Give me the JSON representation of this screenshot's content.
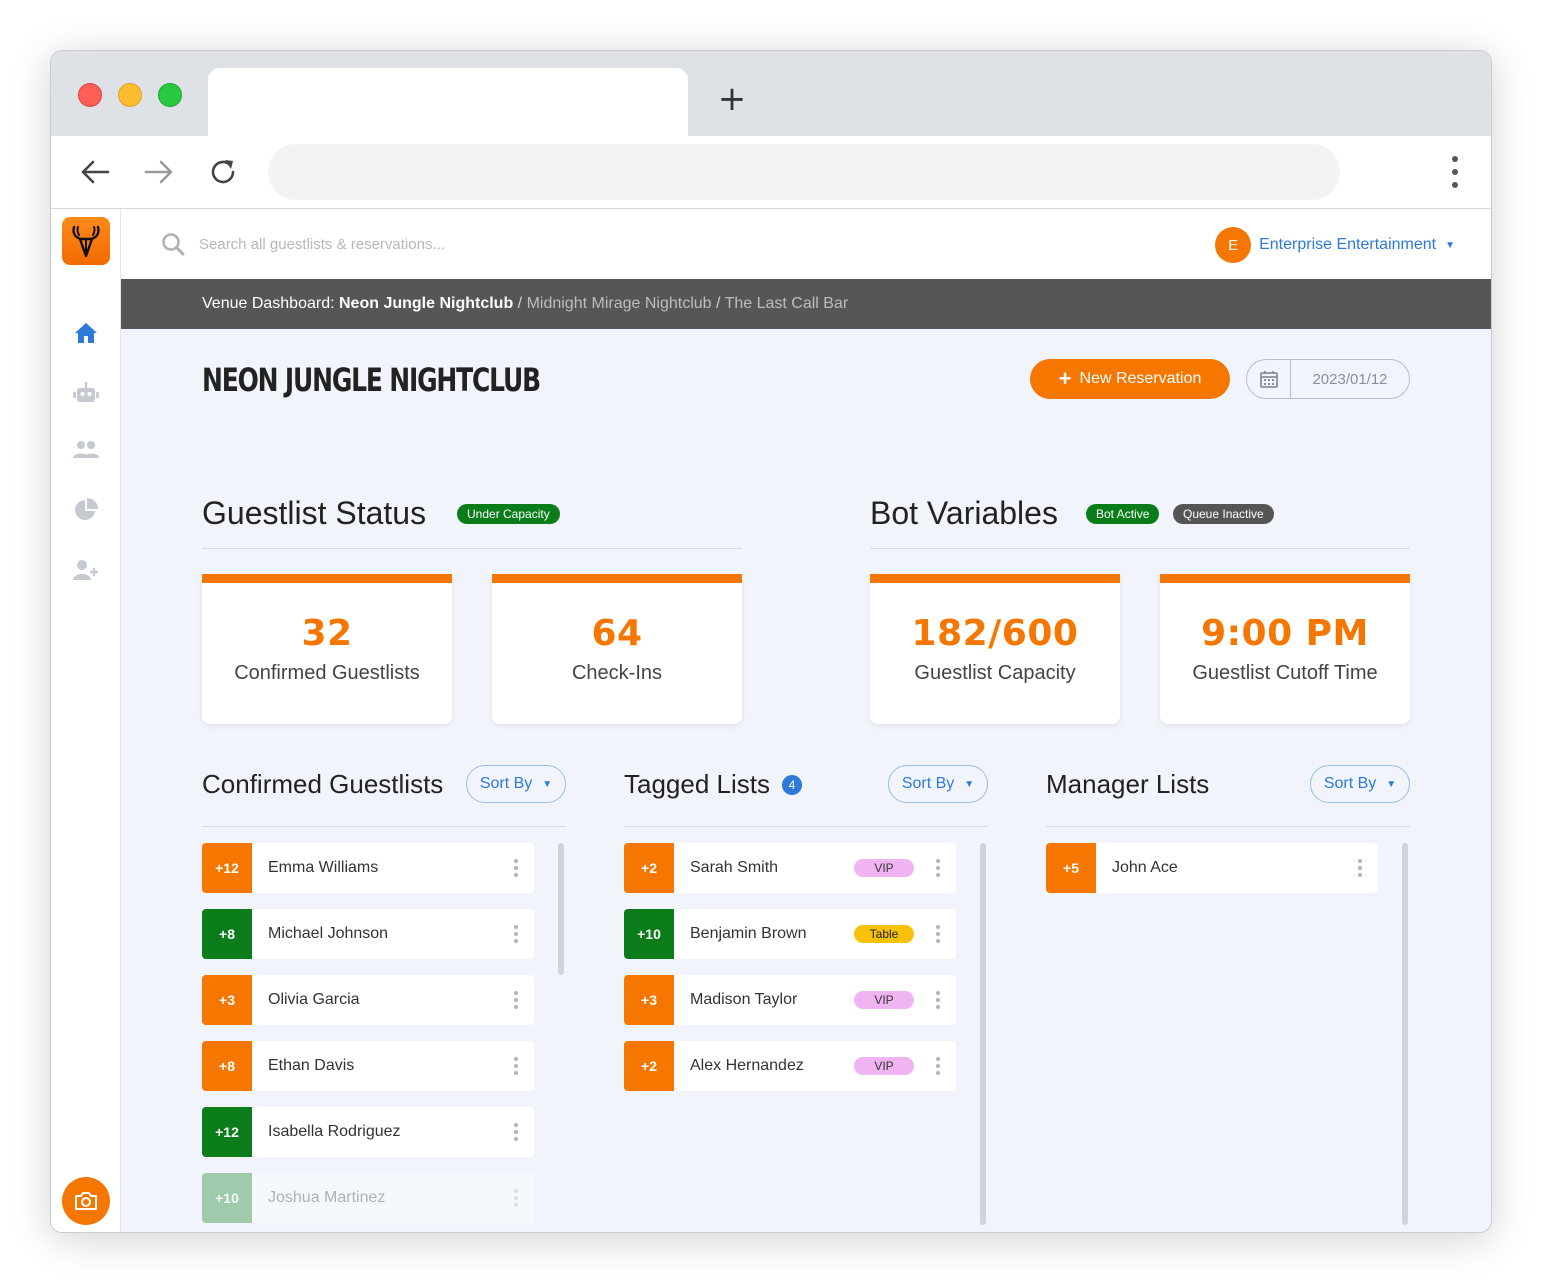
{
  "browser": {
    "new_tab_symbol": "+"
  },
  "header": {
    "search_placeholder": "Search all guestlists & reservations...",
    "account_initial": "E",
    "account_name": "Enterprise Entertainment",
    "account_caret": "▼"
  },
  "breadcrumb": {
    "prefix": "Venue Dashboard: ",
    "current": "Neon Jungle Nightclub",
    "sep": " / ",
    "others": [
      "Midnight Mirage Nightclub",
      "The Last Call Bar"
    ]
  },
  "page": {
    "title": "NEON JUNGLE NIGHTCLUB",
    "new_reservation_label": "New Reservation",
    "date": "2023/01/12"
  },
  "guestlist_status": {
    "title": "Guestlist Status",
    "badge": "Under Capacity",
    "stats": [
      {
        "value": "32",
        "label": "Confirmed Guestlists"
      },
      {
        "value": "64",
        "label": "Check-Ins"
      }
    ]
  },
  "bot_variables": {
    "title": "Bot Variables",
    "badges": [
      "Bot Active",
      "Queue Inactive"
    ],
    "stats": [
      {
        "value": "182/600",
        "label": "Guestlist Capacity"
      },
      {
        "value": "9:00 PM",
        "label": "Guestlist Cutoff Time"
      }
    ]
  },
  "lists": {
    "sort_label": "Sort By",
    "sort_caret": "▼",
    "confirmed": {
      "title": "Confirmed Guestlists",
      "rows": [
        {
          "plus": "+12",
          "name": "Emma Williams",
          "color": "orange"
        },
        {
          "plus": "+8",
          "name": "Michael Johnson",
          "color": "green"
        },
        {
          "plus": "+3",
          "name": "Olivia Garcia",
          "color": "orange"
        },
        {
          "plus": "+8",
          "name": "Ethan Davis",
          "color": "orange"
        },
        {
          "plus": "+12",
          "name": "Isabella Rodriguez",
          "color": "green"
        },
        {
          "plus": "+10",
          "name": "Joshua Martinez",
          "color": "green"
        }
      ]
    },
    "tagged": {
      "title": "Tagged Lists",
      "count": "4",
      "rows": [
        {
          "plus": "+2",
          "name": "Sarah Smith",
          "color": "orange",
          "tag": "VIP"
        },
        {
          "plus": "+10",
          "name": "Benjamin Brown",
          "color": "green",
          "tag": "Table"
        },
        {
          "plus": "+3",
          "name": "Madison Taylor",
          "color": "orange",
          "tag": "VIP"
        },
        {
          "plus": "+2",
          "name": "Alex Hernandez",
          "color": "orange",
          "tag": "VIP"
        }
      ]
    },
    "manager": {
      "title": "Manager Lists",
      "rows": [
        {
          "plus": "+5",
          "name": "John Ace",
          "color": "orange"
        }
      ]
    }
  },
  "colors": {
    "accent": "#f57600",
    "success": "#0a7d1a",
    "link": "#2d7ad9",
    "vip": "#f0b4f2",
    "table": "#f8c10a"
  },
  "icons": {
    "sidebar": [
      "home-icon",
      "robot-icon",
      "users-icon",
      "pie-chart-icon",
      "add-user-icon"
    ],
    "bottom": "camera-icon"
  }
}
